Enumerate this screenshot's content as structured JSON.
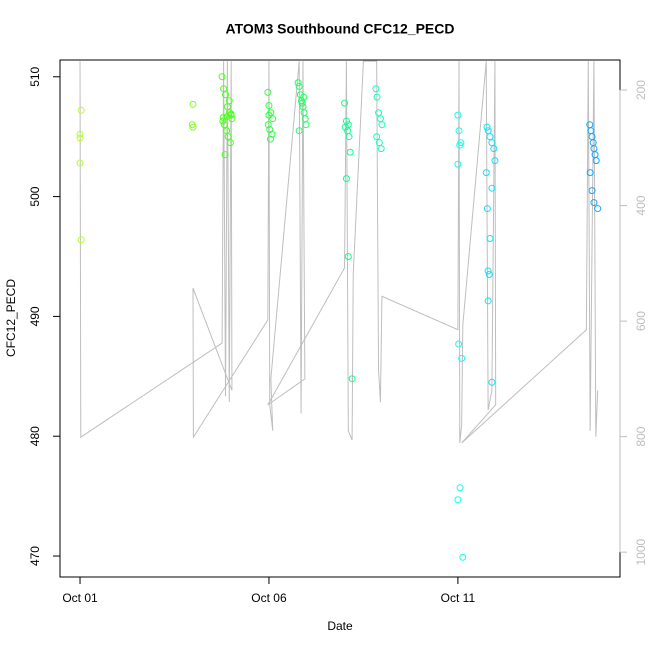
{
  "chart_data": {
    "type": "scatter",
    "title": "ATOM3 Southbound CFC12_PECD",
    "x_label": "Date",
    "y_label": "CFC12_PECD",
    "xlim": [
      0.47,
      15.29
    ],
    "ylim": [
      468.25,
      511.4
    ],
    "y2lim": [
      1043,
      148
    ],
    "xticks": [
      {
        "value": 1,
        "label": "Oct 01"
      },
      {
        "value": 6,
        "label": "Oct 06"
      },
      {
        "value": 11,
        "label": "Oct 11"
      }
    ],
    "yticks": [
      470,
      480,
      490,
      500,
      510
    ],
    "y2ticks": [
      200,
      400,
      600,
      800,
      1000
    ],
    "axis_color": "#000000",
    "y2_axis_color": "#bebebe",
    "series": [
      {
        "type": "scatter",
        "x": [
          1.03,
          1.0,
          1.0,
          1.0,
          1.03,
          3.99,
          3.97,
          3.99,
          4.76,
          4.8,
          4.85,
          4.9,
          4.95,
          5.0,
          5.02,
          4.78,
          4.82,
          4.88,
          4.92,
          4.98,
          4.84,
          4.9,
          4.95,
          4.79,
          5.0,
          5.97,
          6.0,
          6.05,
          6.1,
          5.98,
          6.02,
          6.08,
          6.04,
          6.0,
          6.77,
          6.8,
          6.83,
          6.86,
          6.9,
          6.93,
          6.96,
          6.98,
          6.8,
          6.88,
          6.92,
          8.0,
          8.05,
          8.1,
          8.02,
          8.08,
          8.12,
          8.15,
          8.05,
          8.1,
          8.2,
          8.83,
          8.86,
          8.9,
          8.95,
          8.99,
          8.85,
          8.92,
          8.97,
          11.0,
          11.03,
          11.05,
          11.08,
          11.0,
          11.02,
          11.1,
          11.06,
          11.0,
          11.13,
          11.77,
          11.8,
          11.85,
          11.9,
          11.95,
          11.98,
          11.75,
          11.9,
          11.78,
          11.85,
          11.8,
          11.83,
          11.8,
          11.9,
          14.49,
          14.52,
          14.55,
          14.58,
          14.6,
          14.63,
          14.66,
          14.5,
          14.55,
          14.6,
          14.7
        ],
        "values": [
          507.2,
          505.2,
          504.9,
          502.8,
          496.4,
          507.7,
          506.0,
          505.8,
          510.0,
          509.0,
          508.5,
          507.5,
          507.0,
          506.8,
          506.5,
          506.3,
          506.0,
          505.5,
          505.0,
          504.5,
          503.5,
          506.7,
          508.0,
          506.6,
          506.9,
          508.7,
          507.6,
          507.0,
          506.5,
          506.0,
          505.6,
          505.2,
          504.8,
          506.8,
          509.5,
          509.2,
          508.5,
          508.0,
          507.5,
          507.0,
          506.5,
          506.0,
          505.5,
          507.8,
          508.3,
          507.8,
          506.3,
          506.0,
          505.8,
          505.5,
          505.0,
          503.7,
          501.5,
          495.0,
          484.8,
          509.0,
          508.3,
          507.0,
          506.5,
          506.0,
          505.0,
          504.5,
          504.0,
          506.8,
          505.5,
          504.3,
          504.5,
          502.7,
          487.7,
          486.5,
          475.7,
          474.7,
          469.9,
          505.8,
          505.5,
          505.0,
          504.5,
          504.0,
          503.0,
          502.0,
          500.7,
          499.0,
          496.5,
          493.8,
          493.5,
          491.3,
          484.5,
          506.0,
          505.5,
          505.0,
          504.5,
          504.0,
          503.5,
          503.0,
          502.0,
          500.5,
          499.5,
          499.0
        ],
        "colors": [
          "#b4ff2a",
          "#b4ff2a",
          "#b4ff2a",
          "#b4ff2a",
          "#b4ff2a",
          "#80ff1e",
          "#80ff1e",
          "#80ff1e",
          "#4cff1e",
          "#4cff1e",
          "#4cff1e",
          "#4cff1e",
          "#4cff1e",
          "#4cff1e",
          "#4cff1e",
          "#4cff1e",
          "#4cff1e",
          "#4cff1e",
          "#4cff1e",
          "#4cff1e",
          "#4cff1e",
          "#4cff1e",
          "#4cff1e",
          "#4cff1e",
          "#4cff1e",
          "#30ff40",
          "#30ff40",
          "#30ff40",
          "#30ff40",
          "#30ff40",
          "#30ff40",
          "#30ff40",
          "#30ff40",
          "#30ff40",
          "#20ff60",
          "#20ff60",
          "#20ff60",
          "#20ff60",
          "#20ff60",
          "#20ff60",
          "#20ff60",
          "#20ff60",
          "#20ff60",
          "#20ff60",
          "#20ff60",
          "#10ff90",
          "#10ff90",
          "#10ff90",
          "#10ff90",
          "#10ff90",
          "#10ff90",
          "#10ff90",
          "#10ff90",
          "#10ff90",
          "#10ff90",
          "#10ffc0",
          "#10ffc0",
          "#10ffc0",
          "#10ffc0",
          "#10ffc0",
          "#10ffc0",
          "#10ffc0",
          "#10ffc0",
          "#10ffee",
          "#10ffee",
          "#10ffee",
          "#10ffee",
          "#10ffee",
          "#10ffee",
          "#10ffee",
          "#10ffee",
          "#10ffee",
          "#10ffee",
          "#10e0ff",
          "#10e0ff",
          "#10e0ff",
          "#10e0ff",
          "#10e0ff",
          "#10e0ff",
          "#10e0ff",
          "#10e0ff",
          "#10e0ff",
          "#10e0ff",
          "#10e0ff",
          "#10e0ff",
          "#10e0ff",
          "#10e0ff",
          "#10a8ff",
          "#10a8ff",
          "#10a8ff",
          "#10a8ff",
          "#10a8ff",
          "#10a8ff",
          "#10a8ff",
          "#10a8ff",
          "#10a8ff",
          "#10a8ff",
          "#10a8ff"
        ]
      },
      {
        "type": "line",
        "axis": "y2",
        "color": "#bebebe",
        "x": [
          1.0,
          1.02,
          4.76,
          4.8,
          4.85,
          4.9,
          4.95,
          5.0,
          5.02,
          3.99,
          4.0,
          5.97,
          6.0,
          6.02,
          6.1,
          6.05,
          6.8,
          6.85,
          6.9,
          6.95,
          5.97,
          8.0,
          8.05,
          8.1,
          8.2,
          8.23,
          8.5,
          8.85,
          8.9,
          8.95,
          8.99,
          11.0,
          11.03,
          11.05,
          11.1,
          11.13,
          11.75,
          11.8,
          11.9,
          11.98,
          12.0,
          11.1,
          14.4,
          14.45,
          14.5,
          14.6,
          14.65,
          14.7
        ],
        "values": [
          150,
          801,
          638,
          150,
          730,
          150,
          740,
          150,
          720,
          543,
          801,
          598,
          150,
          745,
          790,
          700,
          150,
          760,
          150,
          700,
          745,
          508,
          150,
          790,
          806,
          519,
          150,
          150,
          685,
          740,
          557,
          615,
          150,
          811,
          780,
          607,
          150,
          754,
          720,
          150,
          745,
          811,
          615,
          150,
          790,
          150,
          800,
          720
        ]
      }
    ]
  }
}
